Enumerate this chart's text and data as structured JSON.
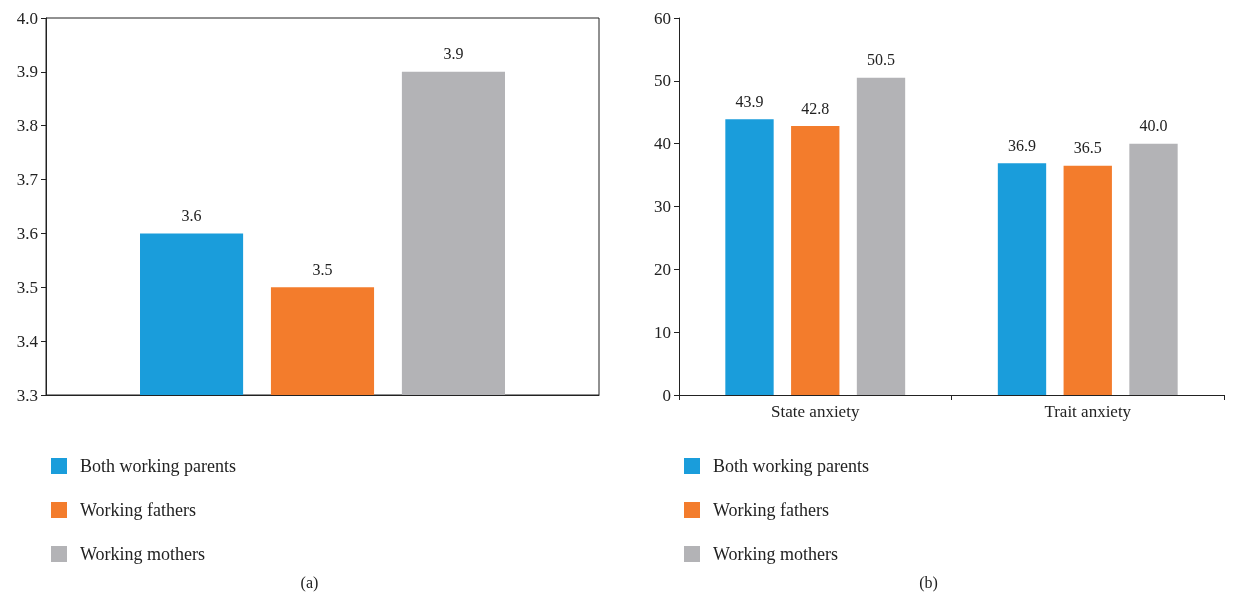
{
  "chart_data": [
    {
      "type": "bar",
      "categories": [
        null
      ],
      "series": [
        {
          "name": "Both working parents",
          "color": "#1a9ddb",
          "values": [
            3.6
          ]
        },
        {
          "name": "Working fathers",
          "color": "#f37c2c",
          "values": [
            3.5
          ]
        },
        {
          "name": "Working mothers",
          "color": "#b3b3b6",
          "values": [
            3.9
          ]
        }
      ],
      "ylim": [
        3.3,
        4.0
      ],
      "yticks": [
        3.3,
        3.4,
        3.5,
        3.6,
        3.7,
        3.8,
        3.9,
        {
          "value": 4.0,
          "label": "4.0"
        }
      ],
      "data_labels": true,
      "legend": "bottom left",
      "grid": false,
      "annotations": [
        "(a)"
      ]
    },
    {
      "type": "bar",
      "categories": [
        "State anxiety",
        "Trait anxiety"
      ],
      "series": [
        {
          "name": "Both working parents",
          "color": "#1a9ddb",
          "values": [
            43.9,
            36.9
          ],
          "value_labels": [
            "43.9",
            "36.9"
          ]
        },
        {
          "name": "Working fathers",
          "color": "#f37c2c",
          "values": [
            42.8,
            36.5
          ],
          "value_labels": [
            "42.8",
            "36.5"
          ]
        },
        {
          "name": "Working mothers",
          "color": "#b3b3b6",
          "values": [
            50.5,
            40.0
          ],
          "value_labels": [
            "50.5",
            "40.0"
          ]
        }
      ],
      "ylim": [
        0,
        60
      ],
      "yticks": [
        0,
        10,
        20,
        30,
        40,
        50,
        60
      ],
      "legend": "bottom left",
      "grid": false,
      "annotations": [
        "(b)"
      ]
    }
  ]
}
